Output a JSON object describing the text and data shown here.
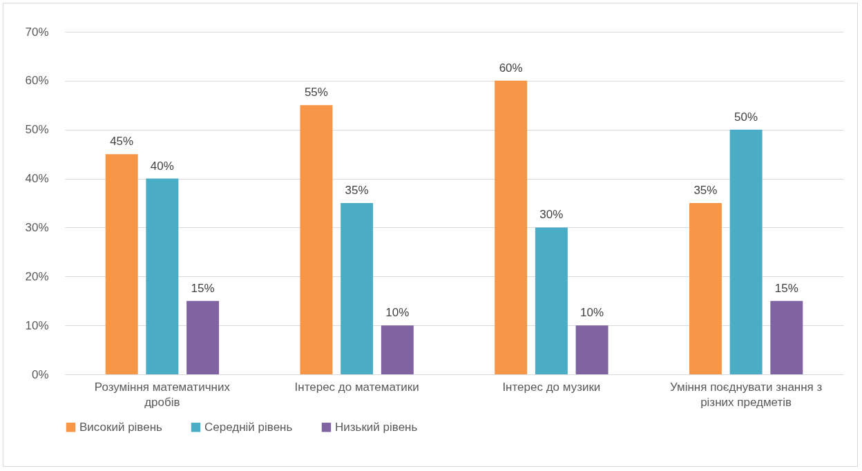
{
  "chart_data": {
    "type": "bar",
    "categories": [
      "Розуміння математичних дробів",
      "Інтерес до математики",
      "Інтерес до музики",
      "Уміння поєднувати знання з різних предметів"
    ],
    "series": [
      {
        "name": "Високий рівень",
        "color": "#f79646",
        "values": [
          45,
          55,
          60,
          35
        ],
        "value_labels": [
          "45%",
          "55%",
          "60%",
          "35%"
        ]
      },
      {
        "name": "Середній рівень",
        "color": "#4bacc6",
        "values": [
          40,
          35,
          30,
          50
        ],
        "value_labels": [
          "40%",
          "35%",
          "30%",
          "50%"
        ]
      },
      {
        "name": "Низький рівень",
        "color": "#8064a2",
        "values": [
          15,
          10,
          10,
          15
        ],
        "value_labels": [
          "15%",
          "10%",
          "10%",
          "15%"
        ]
      }
    ],
    "ylim": [
      0,
      70
    ],
    "yticks": [
      {
        "value": 0,
        "label": "0%"
      },
      {
        "value": 10,
        "label": "10%"
      },
      {
        "value": 20,
        "label": "20%"
      },
      {
        "value": 30,
        "label": "30%"
      },
      {
        "value": 40,
        "label": "40%"
      },
      {
        "value": 50,
        "label": "50%"
      },
      {
        "value": 60,
        "label": "60%"
      },
      {
        "value": 70,
        "label": "70%"
      }
    ],
    "grid": "y",
    "legend": "bottom"
  }
}
